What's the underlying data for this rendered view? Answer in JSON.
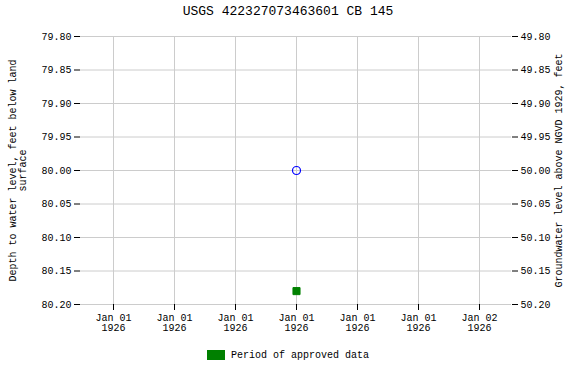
{
  "chart_data": {
    "type": "scatter",
    "title": "USGS 422327073463601 CB 145",
    "categories": [
      "Jan 01\n1926",
      "Jan 01\n1926",
      "Jan 01\n1926",
      "Jan 01\n1926",
      "Jan 01\n1926",
      "Jan 01\n1926",
      "Jan 02\n1926"
    ],
    "y_label": "Depth to water level, feet below land\nsurface",
    "y2_label": "Groundwater level above NGVD 1929, feet",
    "ylim": [
      80.2,
      79.8
    ],
    "yticks": [
      {
        "value": 79.8,
        "label": "79.80"
      },
      {
        "value": 79.85,
        "label": "79.85"
      },
      {
        "value": 79.9,
        "label": "79.90"
      },
      {
        "value": 79.95,
        "label": "79.95"
      },
      {
        "value": 80.0,
        "label": "80.00"
      },
      {
        "value": 80.05,
        "label": "80.05"
      },
      {
        "value": 80.1,
        "label": "80.10"
      },
      {
        "value": 80.15,
        "label": "80.15"
      },
      {
        "value": 80.2,
        "label": "80.20"
      }
    ],
    "y2lim": [
      50.2,
      49.8
    ],
    "y2ticks": [
      {
        "value": 49.8,
        "label": "49.80"
      },
      {
        "value": 49.85,
        "label": "49.85"
      },
      {
        "value": 49.9,
        "label": "49.90"
      },
      {
        "value": 49.95,
        "label": "49.95"
      },
      {
        "value": 50.0,
        "label": "50.00"
      },
      {
        "value": 50.05,
        "label": "50.05"
      },
      {
        "value": 50.1,
        "label": "50.10"
      },
      {
        "value": 50.15,
        "label": "50.15"
      },
      {
        "value": 50.2,
        "label": "50.20"
      }
    ],
    "grid": true,
    "legend": "bottom",
    "series": [
      {
        "color": "blue",
        "marker": "open_circle",
        "values": [
          null,
          null,
          null,
          80.0,
          null,
          null,
          null
        ]
      },
      {
        "name": "Period of approved data",
        "color": "#008000",
        "marker": "square",
        "values": [
          null,
          null,
          null,
          80.18,
          null,
          null,
          null
        ]
      }
    ]
  }
}
